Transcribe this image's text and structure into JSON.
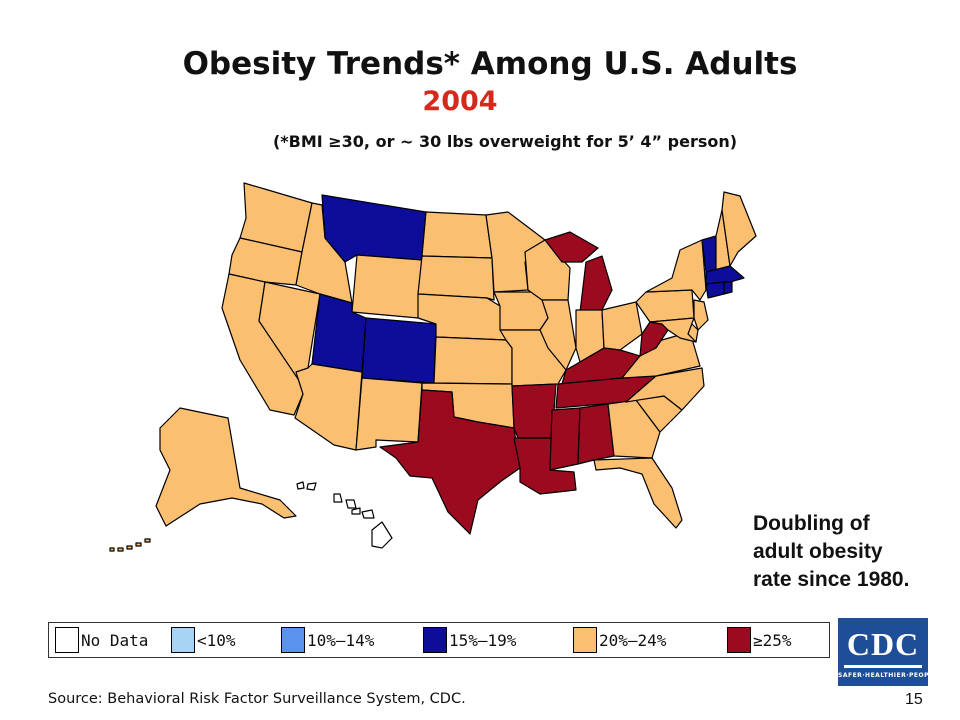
{
  "title": "Obesity Trends* Among U.S. Adults",
  "year": "2004",
  "subtitle": "(*BMI ≥30, or ~ 30 lbs overweight for 5’ 4” person)",
  "note": [
    "Doubling of",
    "adult obesity",
    "rate since 1980."
  ],
  "legend": [
    {
      "label": "No Data",
      "color": "#ffffff"
    },
    {
      "label": "<10%",
      "color": "#a7d3f5"
    },
    {
      "label": "10%–14%",
      "color": "#5a92ee"
    },
    {
      "label": "15%–19%",
      "color": "#0d0d99"
    },
    {
      "label": "20%–24%",
      "color": "#fbbf72"
    },
    {
      "label": "≥25%",
      "color": "#9b0a1f"
    }
  ],
  "source": "Source: Behavioral Risk Factor Surveillance System, CDC.",
  "page_number": "15",
  "logo": {
    "text": "CDC",
    "tagline": "SAFER·HEALTHIER·PEOPLE"
  },
  "state_categories": {
    "WA": "20%–24%",
    "OR": "20%–24%",
    "CA": "20%–24%",
    "NV": "20%–24%",
    "ID": "20%–24%",
    "MT": "15%–19%",
    "WY": "20%–24%",
    "UT": "15%–19%",
    "CO": "15%–19%",
    "AZ": "20%–24%",
    "NM": "20%–24%",
    "ND": "20%–24%",
    "SD": "20%–24%",
    "NE": "20%–24%",
    "KS": "20%–24%",
    "OK": "20%–24%",
    "TX": "≥25%",
    "MN": "20%–24%",
    "IA": "20%–24%",
    "MO": "20%–24%",
    "AR": "≥25%",
    "LA": "≥25%",
    "WI": "20%–24%",
    "IL": "20%–24%",
    "MI": "≥25%",
    "IN": "20%–24%",
    "OH": "20%–24%",
    "KY": "≥25%",
    "TN": "≥25%",
    "MS": "≥25%",
    "AL": "≥25%",
    "GA": "20%–24%",
    "FL": "20%–24%",
    "SC": "20%–24%",
    "NC": "20%–24%",
    "VA": "20%–24%",
    "WV": "≥25%",
    "PA": "20%–24%",
    "NY": "20%–24%",
    "VT": "15%–19%",
    "NH": "20%–24%",
    "ME": "20%–24%",
    "MA": "15%–19%",
    "RI": "15%–19%",
    "CT": "15%–19%",
    "NJ": "20%–24%",
    "DE": "20%–24%",
    "MD": "20%–24%",
    "AK": "20%–24%",
    "HI": "No Data"
  }
}
